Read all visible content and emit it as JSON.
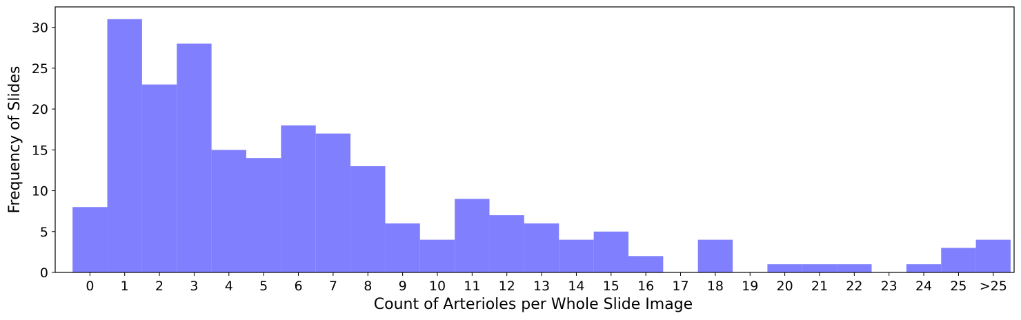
{
  "chart_data": {
    "type": "bar",
    "categories": [
      "0",
      "1",
      "2",
      "3",
      "4",
      "5",
      "6",
      "7",
      "8",
      "9",
      "10",
      "11",
      "12",
      "13",
      "14",
      "15",
      "16",
      "17",
      "18",
      "19",
      "20",
      "21",
      "22",
      "23",
      "24",
      "25",
      ">25"
    ],
    "values": [
      8,
      31,
      23,
      28,
      15,
      14,
      18,
      17,
      13,
      6,
      4,
      9,
      7,
      6,
      4,
      5,
      2,
      0,
      4,
      0,
      1,
      1,
      1,
      0,
      1,
      3,
      4
    ],
    "title": "",
    "xlabel": "Count of Arterioles per Whole Slide Image",
    "ylabel": "Frequency of Slides",
    "ylim": [
      0,
      32.5
    ],
    "yticks": [
      0,
      5,
      10,
      15,
      20,
      25,
      30
    ],
    "bar_color": "#8080ff",
    "grid": false,
    "legend": "none"
  }
}
